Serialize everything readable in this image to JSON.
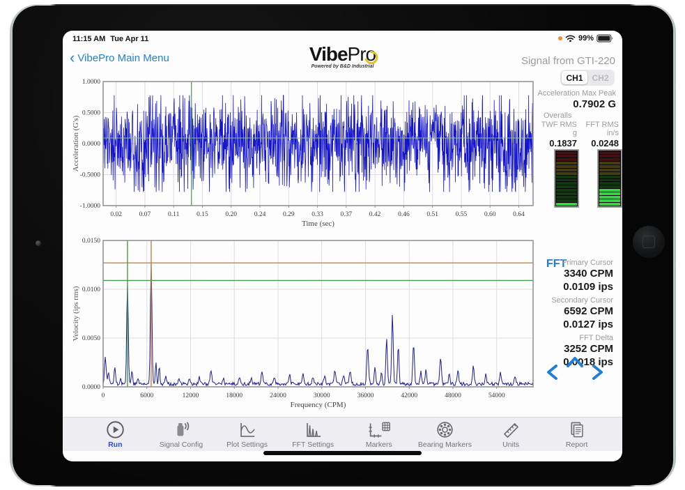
{
  "status_bar": {
    "time": "11:15 AM",
    "date": "Tue Apr 11",
    "battery_percent": "99%"
  },
  "header": {
    "back_label": "VibePro Main Menu",
    "back_chevron": "‹",
    "logo_bold": "Vibe",
    "logo_light": "Pr",
    "logo_o": "o",
    "tagline": "Powered by B&D Industrial",
    "signal_label": "Signal from GTI-220"
  },
  "channels": {
    "ch1": "CH1",
    "ch2": "CH2",
    "selected": "CH1"
  },
  "overalls_panel": {
    "accel_max_peak_label": "Acceleration Max Peak",
    "accel_max_peak_value": "0.7902 G",
    "overalls_label": "Overalls",
    "twf_rms_label": "TWF RMS",
    "twf_rms_unit": "g",
    "twf_rms_value": "0.1837",
    "fft_rms_label": "FFT RMS",
    "fft_rms_unit": "in/s",
    "fft_rms_value": "0.0248",
    "meters": {
      "segments": 16,
      "zones": {
        "red": 3,
        "amber": 4,
        "green": 9
      },
      "twf_meter_lit": 1,
      "fft_meter_lit": 5
    }
  },
  "fft_panel": {
    "title": "FFT",
    "primary_cursor_label": "Primary Cursor",
    "primary_cpm": "3340 CPM",
    "primary_ips": "0.0109 ips",
    "secondary_cursor_label": "Secondary Cursor",
    "secondary_cpm": "6592 CPM",
    "secondary_ips": "0.0127 ips",
    "delta_label": "FFT Delta",
    "delta_cpm": "3252 CPM",
    "delta_ips": "0.0018 ips"
  },
  "toolbar": {
    "items": [
      {
        "label": "Run",
        "icon": "play-icon",
        "active": true
      },
      {
        "label": "Signal Config",
        "icon": "sensor-icon",
        "active": false
      },
      {
        "label": "Plot Settings",
        "icon": "sine-plot-icon",
        "active": false
      },
      {
        "label": "FFT Settings",
        "icon": "spectrum-plot-icon",
        "active": false
      },
      {
        "label": "Markers",
        "icon": "axes-calculator-icon",
        "active": false
      },
      {
        "label": "Bearing Markers",
        "icon": "bearing-icon",
        "active": false
      },
      {
        "label": "Units",
        "icon": "ruler-icon",
        "active": false
      },
      {
        "label": "Report",
        "icon": "report-icon",
        "active": false
      }
    ]
  },
  "colors": {
    "link_blue": "#1e82d6",
    "run_blue": "#2d49cf",
    "waveform_blue": "#1414cc",
    "fft_trace_blue": "#1b1b96",
    "cursor_green": "#449c49",
    "cursor_orange": "#c8813c",
    "grid_gray": "#dcdce2",
    "frame_gray": "#8d8d92",
    "meter_lit_green": "#3bd145"
  },
  "chart_data": [
    {
      "type": "line",
      "id": "twf",
      "xlabel": "Time (sec)",
      "ylabel": "Acceleration (G's)",
      "xlim": [
        0,
        0.662
      ],
      "ylim": [
        -1,
        1
      ],
      "xtick_labels": [
        "0.02",
        "0.07",
        "0.11",
        "0.15",
        "0.20",
        "0.24",
        "0.29",
        "0.33",
        "0.37",
        "0.42",
        "0.46",
        "0.51",
        "0.55",
        "0.60",
        "0.64"
      ],
      "xtick_first": 0.02,
      "xtick_last": 0.64,
      "ytick_labels": [
        "1.0000",
        "0.5000",
        "0.0000",
        "-0.5000",
        "-1.0000"
      ],
      "ytick_values": [
        1,
        0.5,
        0,
        -0.5,
        -1
      ],
      "grid": true,
      "signal": {
        "kind": "broadband-random-noise",
        "seed": 1234,
        "points": 1550,
        "scale": 0.62,
        "spike_prob": 0.02,
        "spike_gain": 1.75,
        "clamp": 0.78,
        "rms_g": 0.1837,
        "max_peak_g": 0.7902
      },
      "cursor": {
        "t_sec": 0.136,
        "level_g": 0.09
      }
    },
    {
      "type": "line",
      "id": "fft",
      "xlabel": "Frequency (CPM)",
      "ylabel": "Velocity (ips rms)",
      "xlim": [
        0,
        59000
      ],
      "ylim": [
        0,
        0.015
      ],
      "xtick_values": [
        0,
        6000,
        12000,
        18000,
        24000,
        30000,
        36000,
        42000,
        48000,
        54000
      ],
      "ytick_labels": [
        "0.0150",
        "0.0100",
        "0.0050",
        "0.0000"
      ],
      "ytick_values": [
        0.015,
        0.01,
        0.005,
        0
      ],
      "grid": true,
      "noise_floor_ips": 0.00012,
      "noise_jitter_ips": 0.00035,
      "noise_seed": 77,
      "peaks": [
        [
          300,
          0.0028,
          160
        ],
        [
          750,
          0.0013,
          130
        ],
        [
          1600,
          0.0019,
          140
        ],
        [
          2400,
          0.0007,
          130
        ],
        [
          3340,
          0.0104,
          150
        ],
        [
          3950,
          0.0015,
          130
        ],
        [
          4800,
          0.0006,
          130
        ],
        [
          6592,
          0.0126,
          150
        ],
        [
          7250,
          0.0024,
          120
        ],
        [
          7700,
          0.0019,
          120
        ],
        [
          8600,
          0.0008,
          140
        ],
        [
          10400,
          0.0007,
          150
        ],
        [
          11800,
          0.0006,
          150
        ],
        [
          13200,
          0.0007,
          150
        ],
        [
          14800,
          0.0014,
          160
        ],
        [
          16500,
          0.0006,
          150
        ],
        [
          18700,
          0.0007,
          150
        ],
        [
          20300,
          0.0006,
          150
        ],
        [
          21800,
          0.0012,
          160
        ],
        [
          23500,
          0.0007,
          150
        ],
        [
          25600,
          0.0009,
          150
        ],
        [
          27400,
          0.001,
          160
        ],
        [
          28800,
          0.0007,
          150
        ],
        [
          30400,
          0.0009,
          150
        ],
        [
          31800,
          0.0013,
          160
        ],
        [
          33000,
          0.0008,
          150
        ],
        [
          33900,
          0.0014,
          160
        ],
        [
          36300,
          0.0037,
          170
        ],
        [
          37300,
          0.0017,
          140
        ],
        [
          38200,
          0.0012,
          140
        ],
        [
          38900,
          0.0046,
          150
        ],
        [
          39700,
          0.0071,
          150
        ],
        [
          40500,
          0.0038,
          140
        ],
        [
          42600,
          0.0041,
          160
        ],
        [
          43600,
          0.0012,
          140
        ],
        [
          44300,
          0.0015,
          140
        ],
        [
          46300,
          0.0027,
          160
        ],
        [
          47500,
          0.0012,
          140
        ],
        [
          48700,
          0.0015,
          150
        ],
        [
          50800,
          0.0019,
          150
        ],
        [
          52500,
          0.0009,
          140
        ],
        [
          54500,
          0.0011,
          150
        ],
        [
          56500,
          0.0008,
          150
        ]
      ],
      "cursors": {
        "primary": {
          "cpm": 3340,
          "ips": 0.0109
        },
        "secondary": {
          "cpm": 6592,
          "ips": 0.0127
        }
      }
    }
  ]
}
